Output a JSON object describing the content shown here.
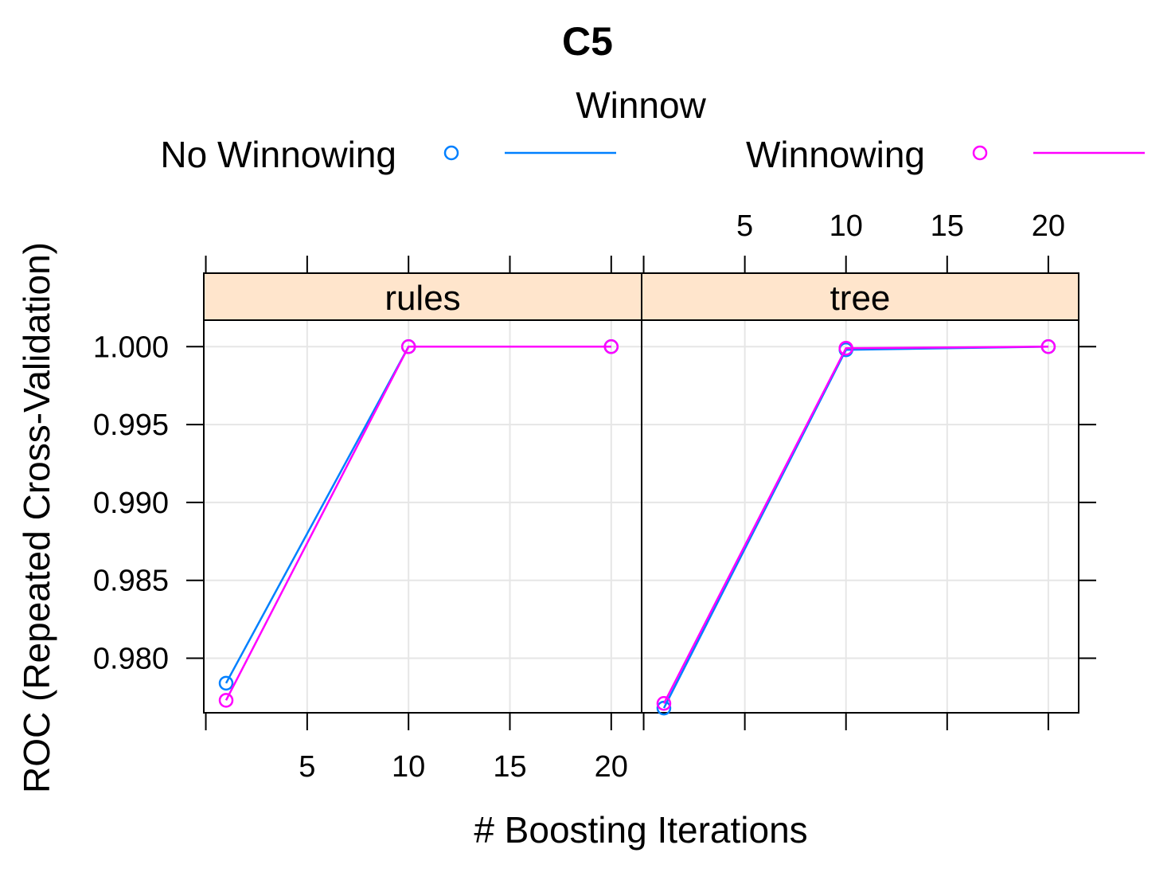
{
  "chart_data": {
    "type": "line",
    "title": "C5",
    "xlabel": "# Boosting Iterations",
    "ylabel": "ROC (Repeated Cross-Validation)",
    "legend": {
      "title": "Winnow",
      "placement": "top",
      "entries": [
        {
          "name": "No Winnowing",
          "color": "#0080ff"
        },
        {
          "name": "Winnowing",
          "color": "#ff00ff"
        }
      ]
    },
    "x_ticks": [
      "5",
      "10",
      "15",
      "20"
    ],
    "y_ticks": [
      "0.980",
      "0.985",
      "0.990",
      "0.995",
      "1.000"
    ],
    "xlim": [
      -0.1,
      21.5
    ],
    "ylim": [
      0.9765,
      1.0017
    ],
    "grid": true,
    "panels": [
      {
        "strip": "rules",
        "series": [
          {
            "name": "No Winnowing",
            "x": [
              1,
              10,
              20
            ],
            "y": [
              0.9784,
              1.0,
              1.0
            ]
          },
          {
            "name": "Winnowing",
            "x": [
              1,
              10,
              20
            ],
            "y": [
              0.9773,
              1.0,
              1.0
            ]
          }
        ]
      },
      {
        "strip": "tree",
        "series": [
          {
            "name": "No Winnowing",
            "x": [
              1,
              10,
              20
            ],
            "y": [
              0.9768,
              0.9998,
              1.0
            ]
          },
          {
            "name": "Winnowing",
            "x": [
              1,
              10,
              20
            ],
            "y": [
              0.9771,
              0.9999,
              1.0
            ]
          }
        ]
      }
    ]
  }
}
